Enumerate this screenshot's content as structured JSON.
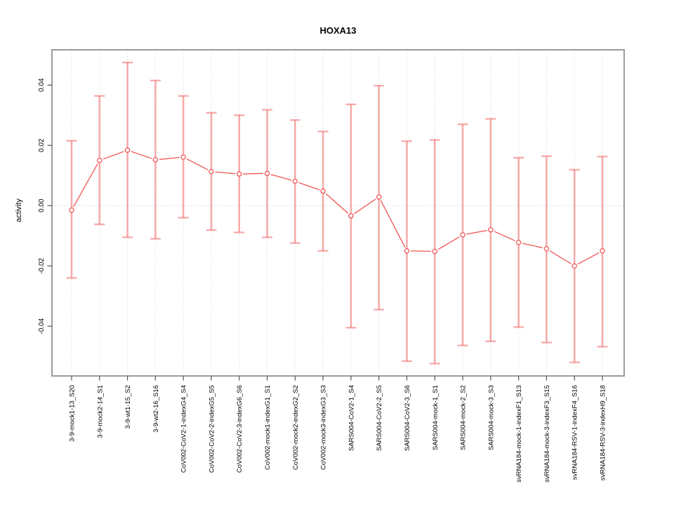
{
  "chart_data": {
    "type": "line",
    "title": "HOXA13",
    "xlabel": "",
    "ylabel": "activity",
    "ylim": [
      -0.0565,
      0.0517
    ],
    "y_ticks": [
      0.04,
      0.02,
      0.0,
      -0.02,
      -0.04
    ],
    "y_tick_labels": [
      "0.04",
      "0.02",
      "0.00",
      "-0.02",
      "-0.04"
    ],
    "grid": "vertical dotted line per category, dotted horizontal line at y=0",
    "legend": "none",
    "categories": [
      "3-9-mock1-13_S20",
      "3-9-mock2-14_S1",
      "3-9-wt1-15_S2",
      "3-9-wt2-16_S16",
      "CoV002-CoV2-1-indexG4_S4",
      "CoV002-CoV2-2-indexG5_S5",
      "CoV002-CoV2-3-indexG6_S6",
      "CoV002-mock1-indexG1_S1",
      "CoV002-mock2-indexG2_S2",
      "CoV002-mock3-indexG3_S3",
      "SARS004-CoV2-1_S4",
      "SARS004-CoV2-2_S5",
      "SARS004-CoV2-3_S6",
      "SARS004-mock-1_S1",
      "SARS004-mock-2_S2",
      "SARS004-mock-3_S3",
      "svRNA184-mock-1-indexF1_S13",
      "svRNA184-mock-3-indexF3_S15",
      "svRNA184-RSV-1-indexF4_S16",
      "svRNA184-RSV-3-indexH9_S18"
    ],
    "series": [
      {
        "name": "activity",
        "marker": "open-circle",
        "values": [
          -0.0015,
          0.015,
          0.0184,
          0.0152,
          0.0161,
          0.0113,
          0.0105,
          0.0107,
          0.0081,
          0.0048,
          -0.0034,
          0.0029,
          -0.015,
          -0.0152,
          -0.0097,
          -0.008,
          -0.0122,
          -0.0143,
          -0.02,
          -0.015
        ],
        "upper": [
          0.0215,
          0.0364,
          0.0475,
          0.0415,
          0.0364,
          0.0308,
          0.03,
          0.0318,
          0.0284,
          0.0246,
          0.0336,
          0.0398,
          0.0214,
          0.0218,
          0.027,
          0.0288,
          0.0159,
          0.0164,
          0.0119,
          0.0163
        ],
        "lower": [
          -0.024,
          -0.0062,
          -0.0105,
          -0.011,
          -0.004,
          -0.0081,
          -0.0089,
          -0.0105,
          -0.0124,
          -0.015,
          -0.0405,
          -0.0345,
          -0.0516,
          -0.0524,
          -0.0464,
          -0.045,
          -0.0403,
          -0.0454,
          -0.052,
          -0.0468
        ]
      }
    ],
    "colors": {
      "point_line": "#ef5555",
      "error_bar": "rgba(243,105,105,0.55)",
      "grid": "#dcdcdc",
      "zero_line": "#d4d4d4",
      "axis_box": "#909090",
      "tick": "#555555",
      "text": "#000000",
      "background": "#ffffff"
    }
  }
}
